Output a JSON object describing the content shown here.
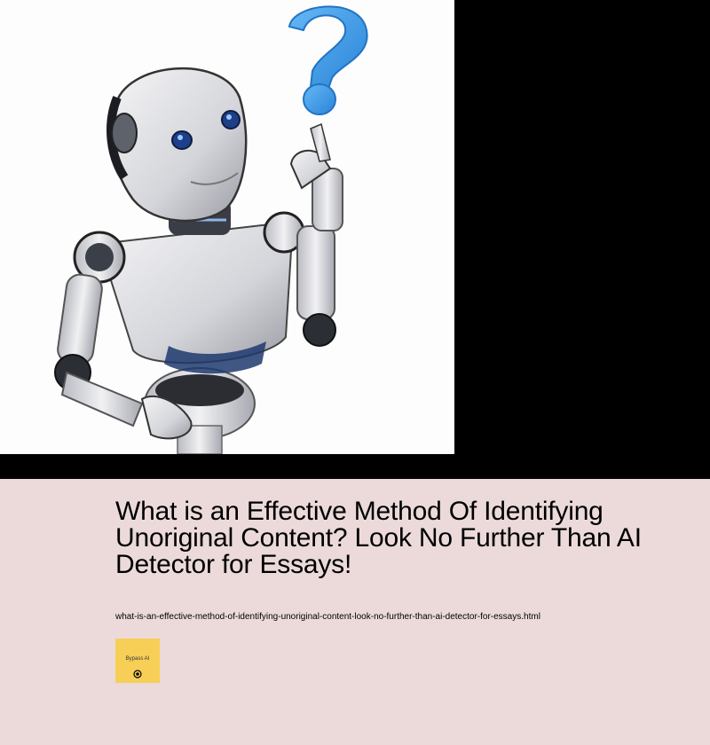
{
  "hero": {
    "image_name": "robot-with-question-mark-illustration"
  },
  "article": {
    "title": "What is an Effective Method Of Identifying Unoriginal Content? Look No Further Than AI Detector for Essays!",
    "filename": "what-is-an-effective-method-of-identifying-unoriginal-content-look-no-further-than-ai-detector-for-essays.html"
  },
  "badge": {
    "label": "Bypass AI",
    "icon": "target-icon",
    "color": "#f7cf57"
  },
  "colors": {
    "page_background": "#000000",
    "content_background": "#ecdada",
    "question_mark": "#3d9be9"
  }
}
